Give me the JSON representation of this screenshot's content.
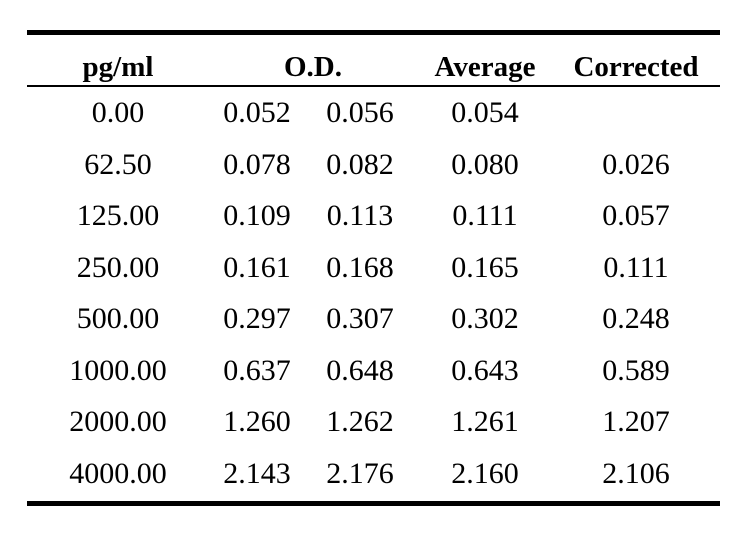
{
  "table": {
    "headers": {
      "concentration": "pg/ml",
      "od": "O.D.",
      "average": "Average",
      "corrected": "Corrected"
    },
    "rows": [
      {
        "conc": "0.00",
        "od1": "0.052",
        "od2": "0.056",
        "avg": "0.054",
        "corr": ""
      },
      {
        "conc": "62.50",
        "od1": "0.078",
        "od2": "0.082",
        "avg": "0.080",
        "corr": "0.026"
      },
      {
        "conc": "125.00",
        "od1": "0.109",
        "od2": "0.113",
        "avg": "0.111",
        "corr": "0.057"
      },
      {
        "conc": "250.00",
        "od1": "0.161",
        "od2": "0.168",
        "avg": "0.165",
        "corr": "0.111"
      },
      {
        "conc": "500.00",
        "od1": "0.297",
        "od2": "0.307",
        "avg": "0.302",
        "corr": "0.248"
      },
      {
        "conc": "1000.00",
        "od1": "0.637",
        "od2": "0.648",
        "avg": "0.643",
        "corr": "0.589"
      },
      {
        "conc": "2000.00",
        "od1": "1.260",
        "od2": "1.262",
        "avg": "1.261",
        "corr": "1.207"
      },
      {
        "conc": "4000.00",
        "od1": "2.143",
        "od2": "2.176",
        "avg": "2.160",
        "corr": "2.106"
      }
    ]
  }
}
